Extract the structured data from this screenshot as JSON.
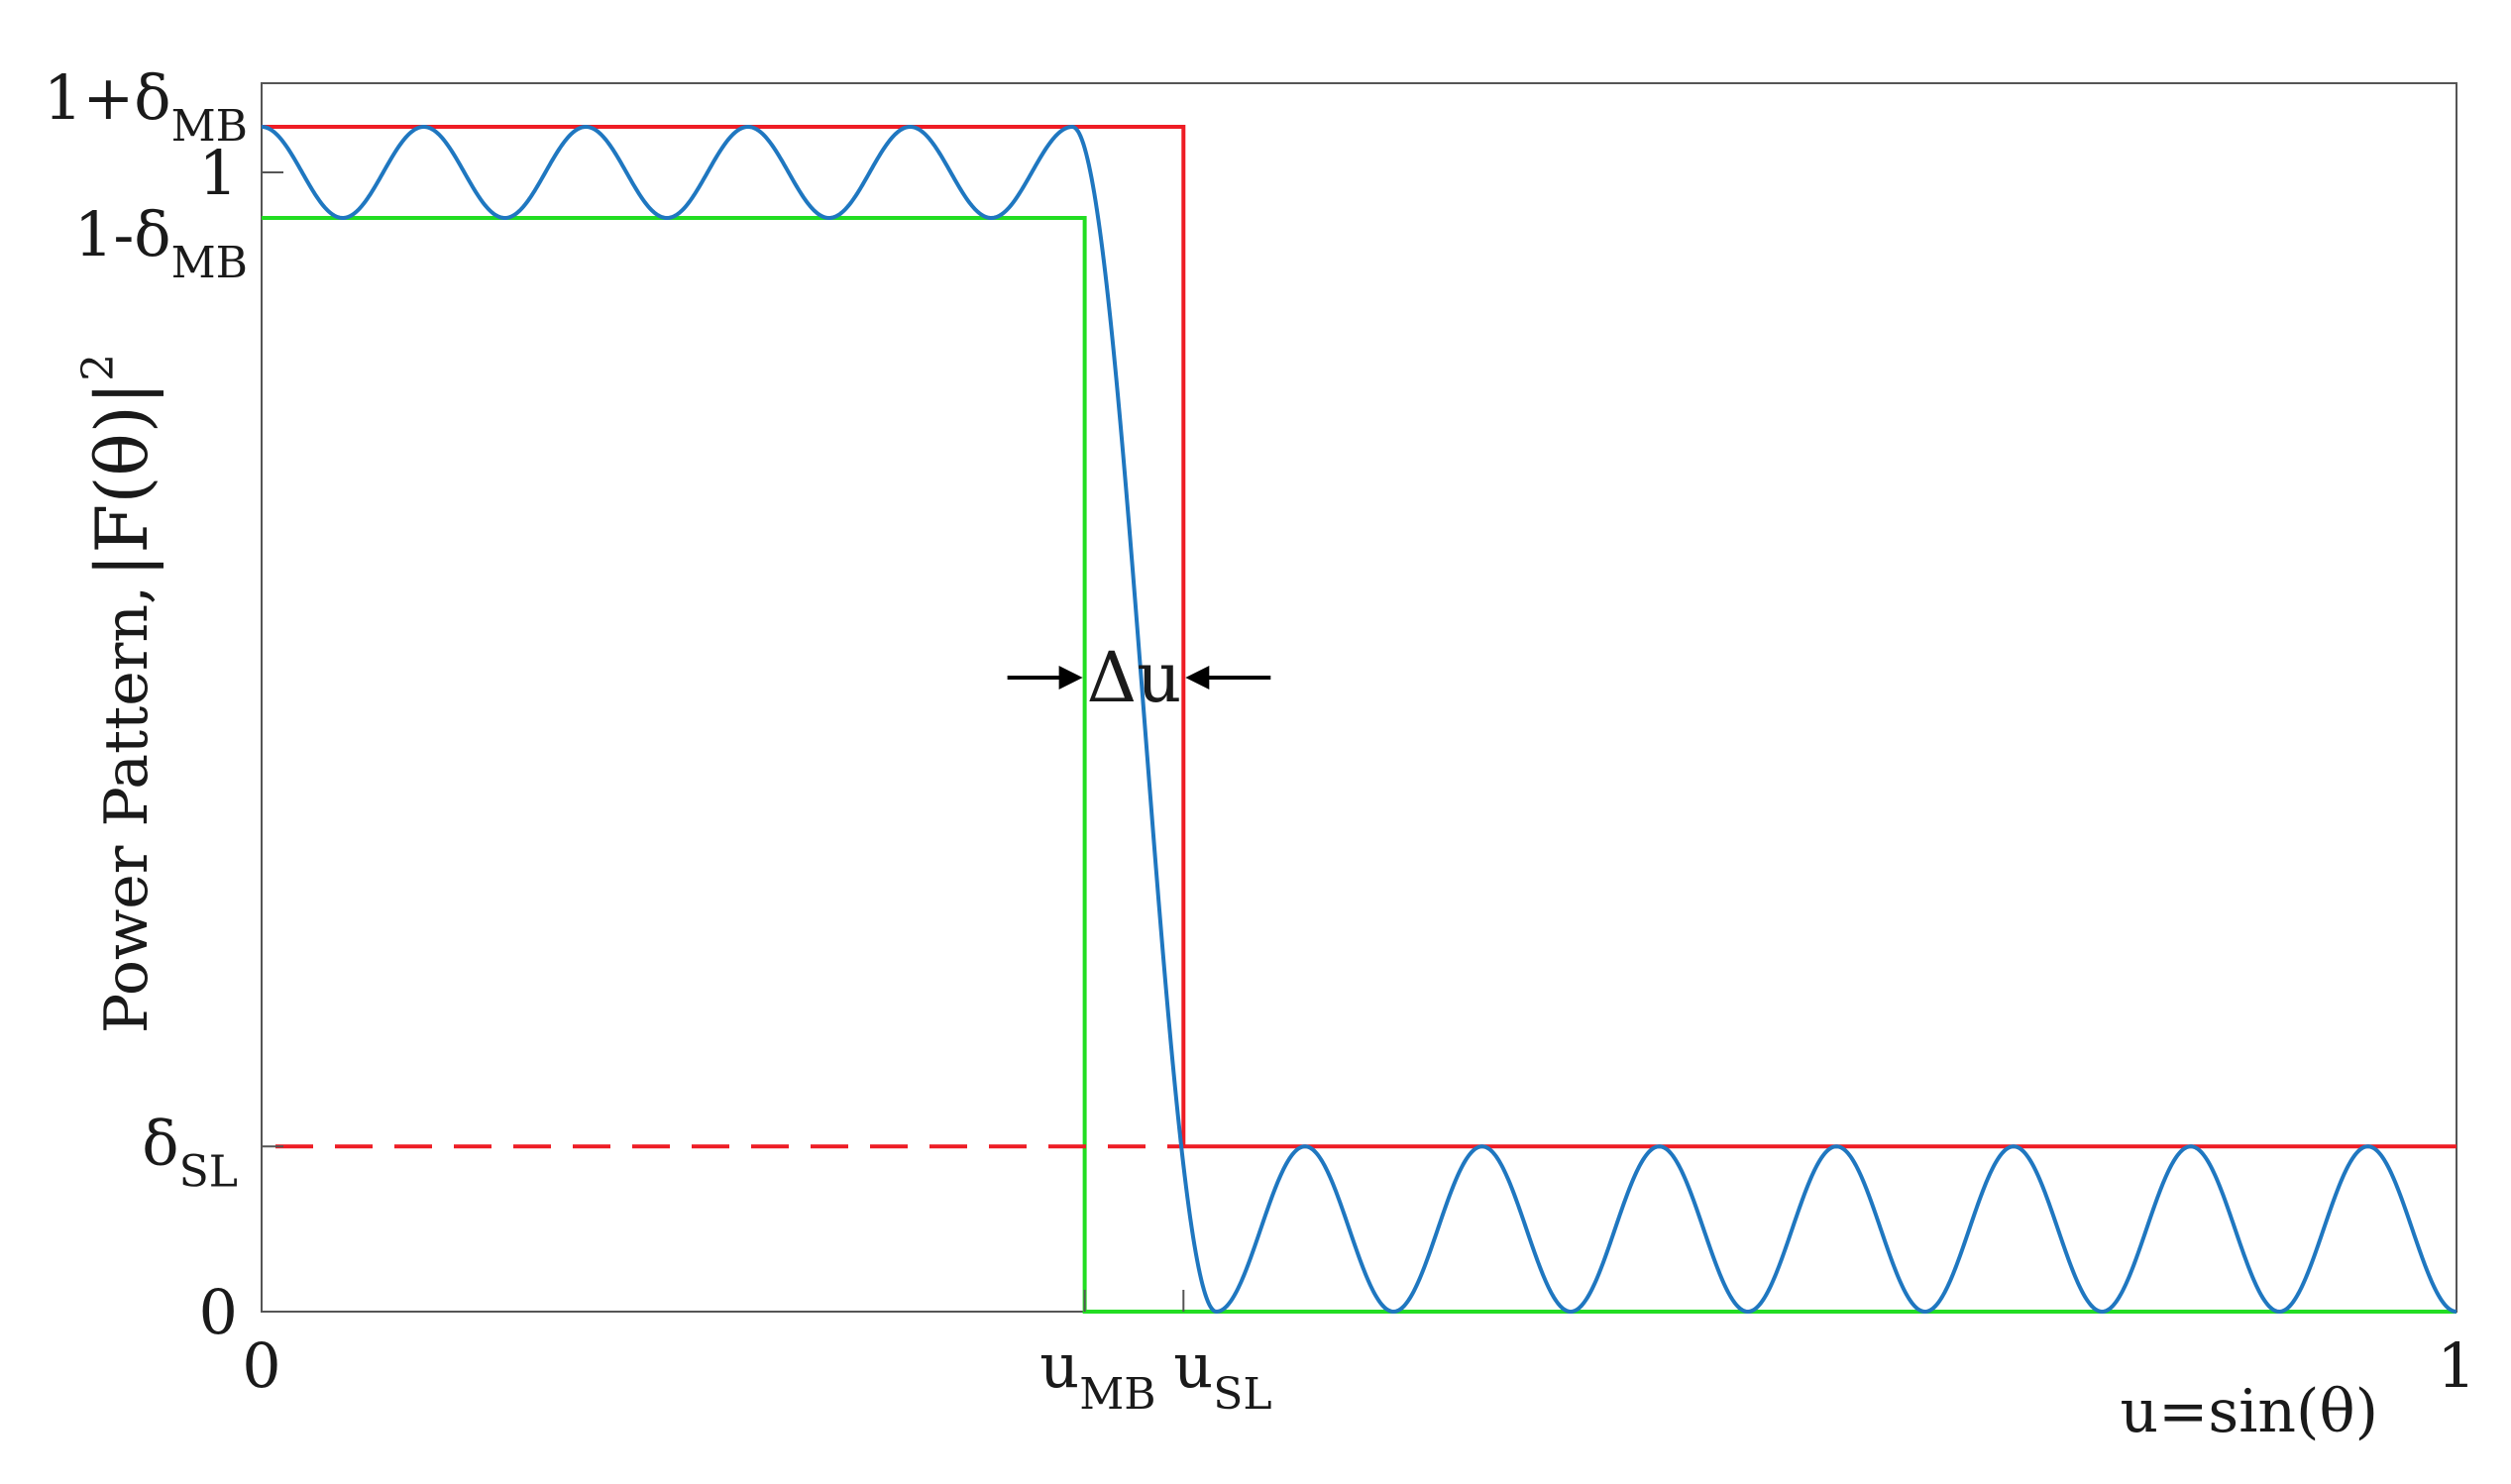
{
  "chart_data": {
    "type": "line",
    "title": "",
    "xlabel": "u=sin(θ)",
    "ylabel_text": "Power Pattern,",
    "ylabel_math": "|F(θ)|",
    "ylabel_exponent": "2",
    "xlim": [
      0,
      1
    ],
    "x_ticks": [
      {
        "label": "0"
      },
      {
        "label": "u",
        "sub": "MB"
      },
      {
        "label": "u",
        "sub": "SL"
      },
      {
        "label": "1"
      }
    ],
    "y_ticks": [
      {
        "label": "1+δ",
        "sub": "MB"
      },
      {
        "label": "1"
      },
      {
        "label": "1-δ",
        "sub": "MB"
      },
      {
        "label": "δ",
        "sub": "SL"
      },
      {
        "label": "0"
      }
    ],
    "annotation": "Δu",
    "parameters": {
      "u_MB": 0.375,
      "u_SL": 0.42,
      "delta_MB": 0.04,
      "delta_SL": 0.145,
      "mainbeam_ripples": 5,
      "sidelobes": 7
    },
    "colors": {
      "pattern": "#1f77c0",
      "upper_mask": "#ee1c24",
      "lower_mask": "#22dd22",
      "axes": "#555555",
      "text": "#1a1a1a"
    }
  }
}
